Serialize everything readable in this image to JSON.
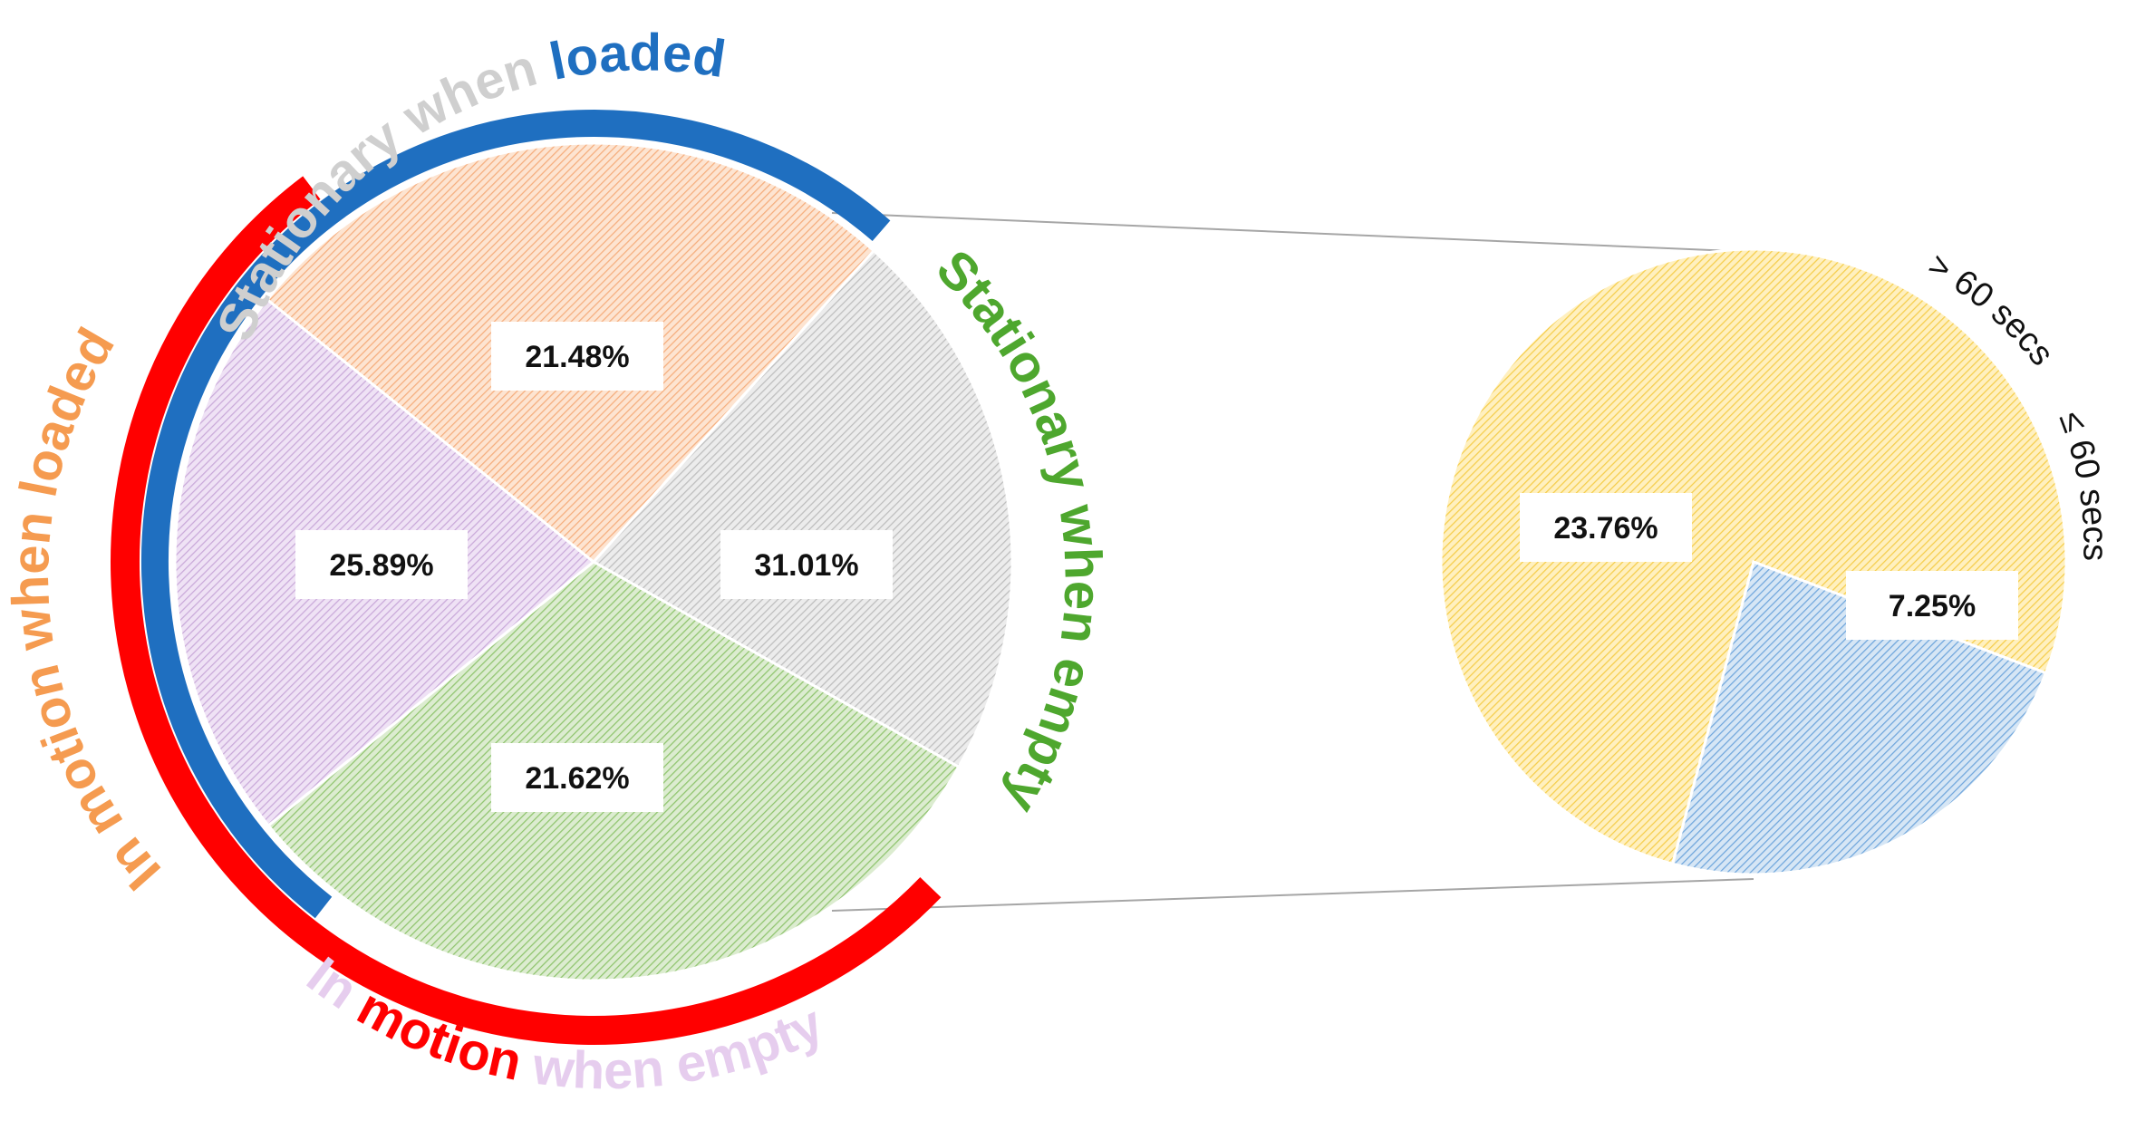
{
  "chart_data": [
    {
      "type": "pie",
      "name": "main",
      "slices": [
        {
          "label": "Stationary when loaded",
          "value": 21.48,
          "value_label": "21.48%",
          "color": "#c9c9c9",
          "stroke": "#a5a5a5"
        },
        {
          "label": "Stationary when empty",
          "value": 31.01,
          "value_label": "31.01%",
          "color": "#a9d18e",
          "stroke": "#70ad47"
        },
        {
          "label": "In motion when empty",
          "value": 21.62,
          "value_label": "21.62%",
          "color": "#d9bfe6",
          "stroke": "#b4a7d6"
        },
        {
          "label": "In motion when loaded",
          "value": 25.89,
          "value_label": "25.89%",
          "color": "#f8c39a",
          "stroke": "#f4b183"
        }
      ],
      "curved_labels": {
        "stationary_loaded": [
          {
            "text": "Stationary when ",
            "color": "#cfcfcf"
          },
          {
            "text": "loaded",
            "color": "#1f6fc0"
          }
        ],
        "stationary_empty": [
          {
            "text": "Stationary when empty",
            "color": "#4ea72e"
          }
        ],
        "motion_empty": [
          {
            "text": "In ",
            "color": "#e6cdee"
          },
          {
            "text": "motion",
            "color": "#ff0000"
          },
          {
            "text": " when empty",
            "color": "#e6cdee"
          }
        ],
        "motion_loaded": [
          {
            "text": "In motion when loaded",
            "color": "#f59b50"
          }
        ]
      },
      "group_bands": [
        {
          "name": "loaded",
          "color": "#1f6fc0"
        },
        {
          "name": "motion",
          "color": "#ff0000"
        }
      ]
    },
    {
      "type": "pie",
      "name": "breakdown",
      "slices": [
        {
          "label": "> 60 secs",
          "value": 23.76,
          "value_label": "23.76%",
          "color": "#ffd966",
          "stroke": "#f2c037"
        },
        {
          "label": "≤ 60 secs",
          "value": 7.25,
          "value_label": "7.25%",
          "color": "#9dc3e6",
          "stroke": "#5b9bd5"
        }
      ]
    }
  ]
}
